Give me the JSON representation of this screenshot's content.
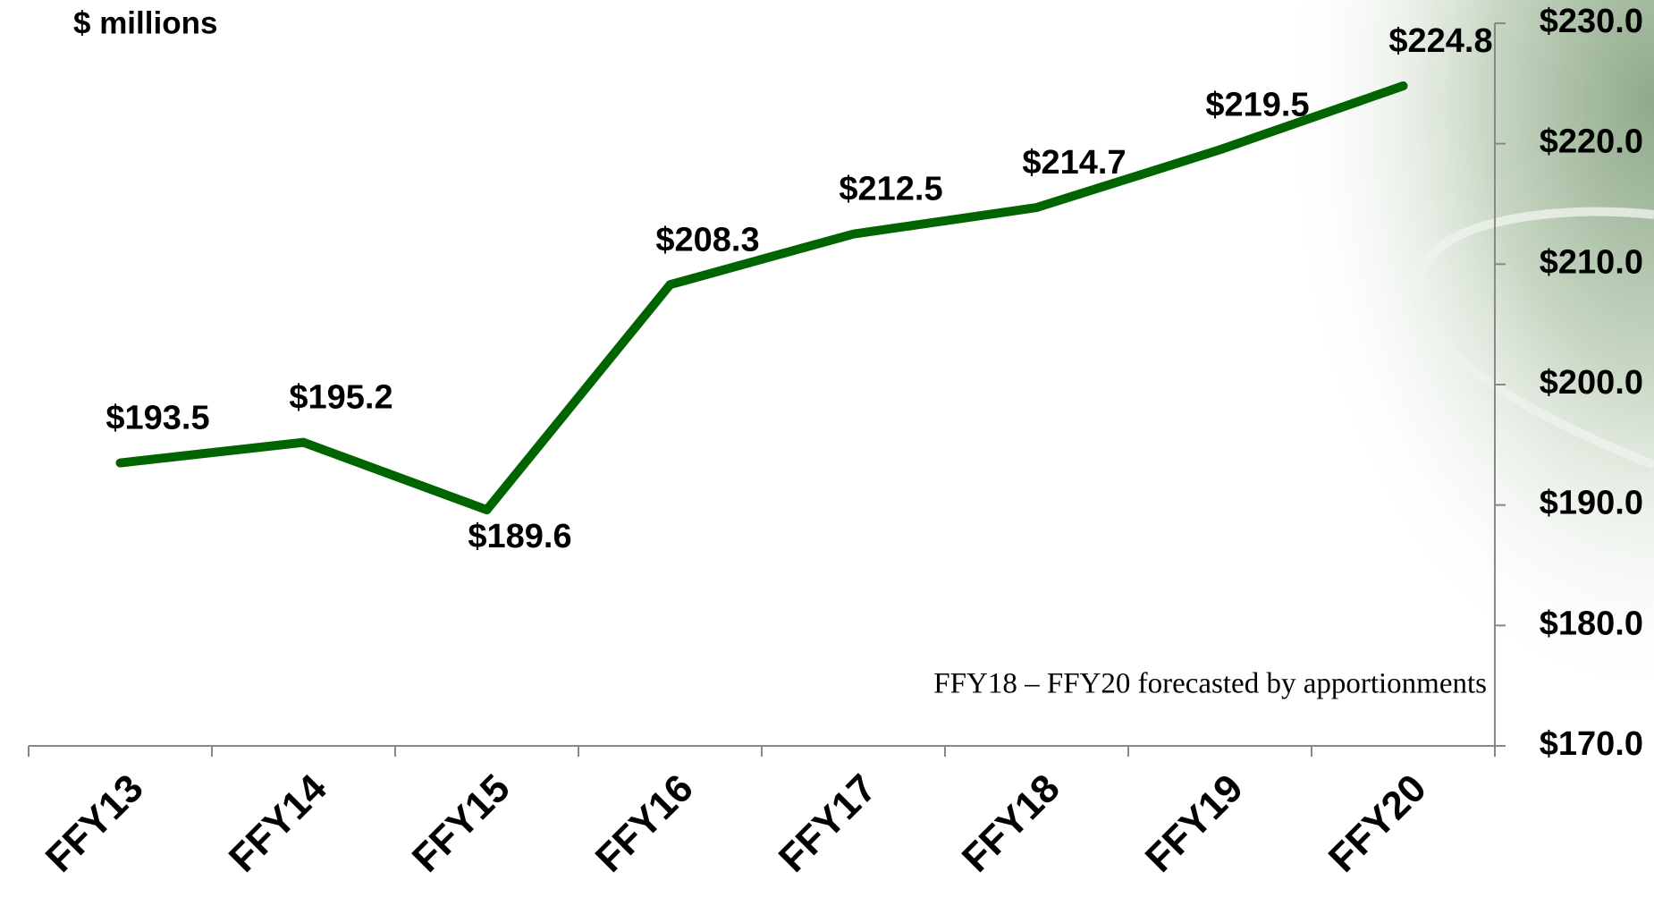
{
  "chart_data": {
    "type": "line",
    "title": "$ millions",
    "annotation": "FFY18 – FFY20 forecasted by apportionments",
    "categories": [
      "FFY13",
      "FFY14",
      "FFY15",
      "FFY16",
      "FFY17",
      "FFY18",
      "FFY19",
      "FFY20"
    ],
    "values": [
      193.5,
      195.2,
      189.6,
      208.3,
      212.5,
      214.7,
      219.5,
      224.8
    ],
    "value_labels": [
      "$193.5",
      "$195.2",
      "$189.6",
      "$208.3",
      "$212.5",
      "$214.7",
      "$219.5",
      "$224.8"
    ],
    "color": "#006400",
    "ylim": [
      170,
      230
    ],
    "yticks": [
      {
        "value": 170,
        "label": "$170.0"
      },
      {
        "value": 180,
        "label": "$180.0"
      },
      {
        "value": 190,
        "label": "$190.0"
      },
      {
        "value": 200,
        "label": "$200.0"
      },
      {
        "value": 210,
        "label": "$210.0"
      },
      {
        "value": 220,
        "label": "$220.0"
      },
      {
        "value": 230,
        "label": "$230.0"
      }
    ],
    "y_axis_side": "right",
    "grid": false
  }
}
